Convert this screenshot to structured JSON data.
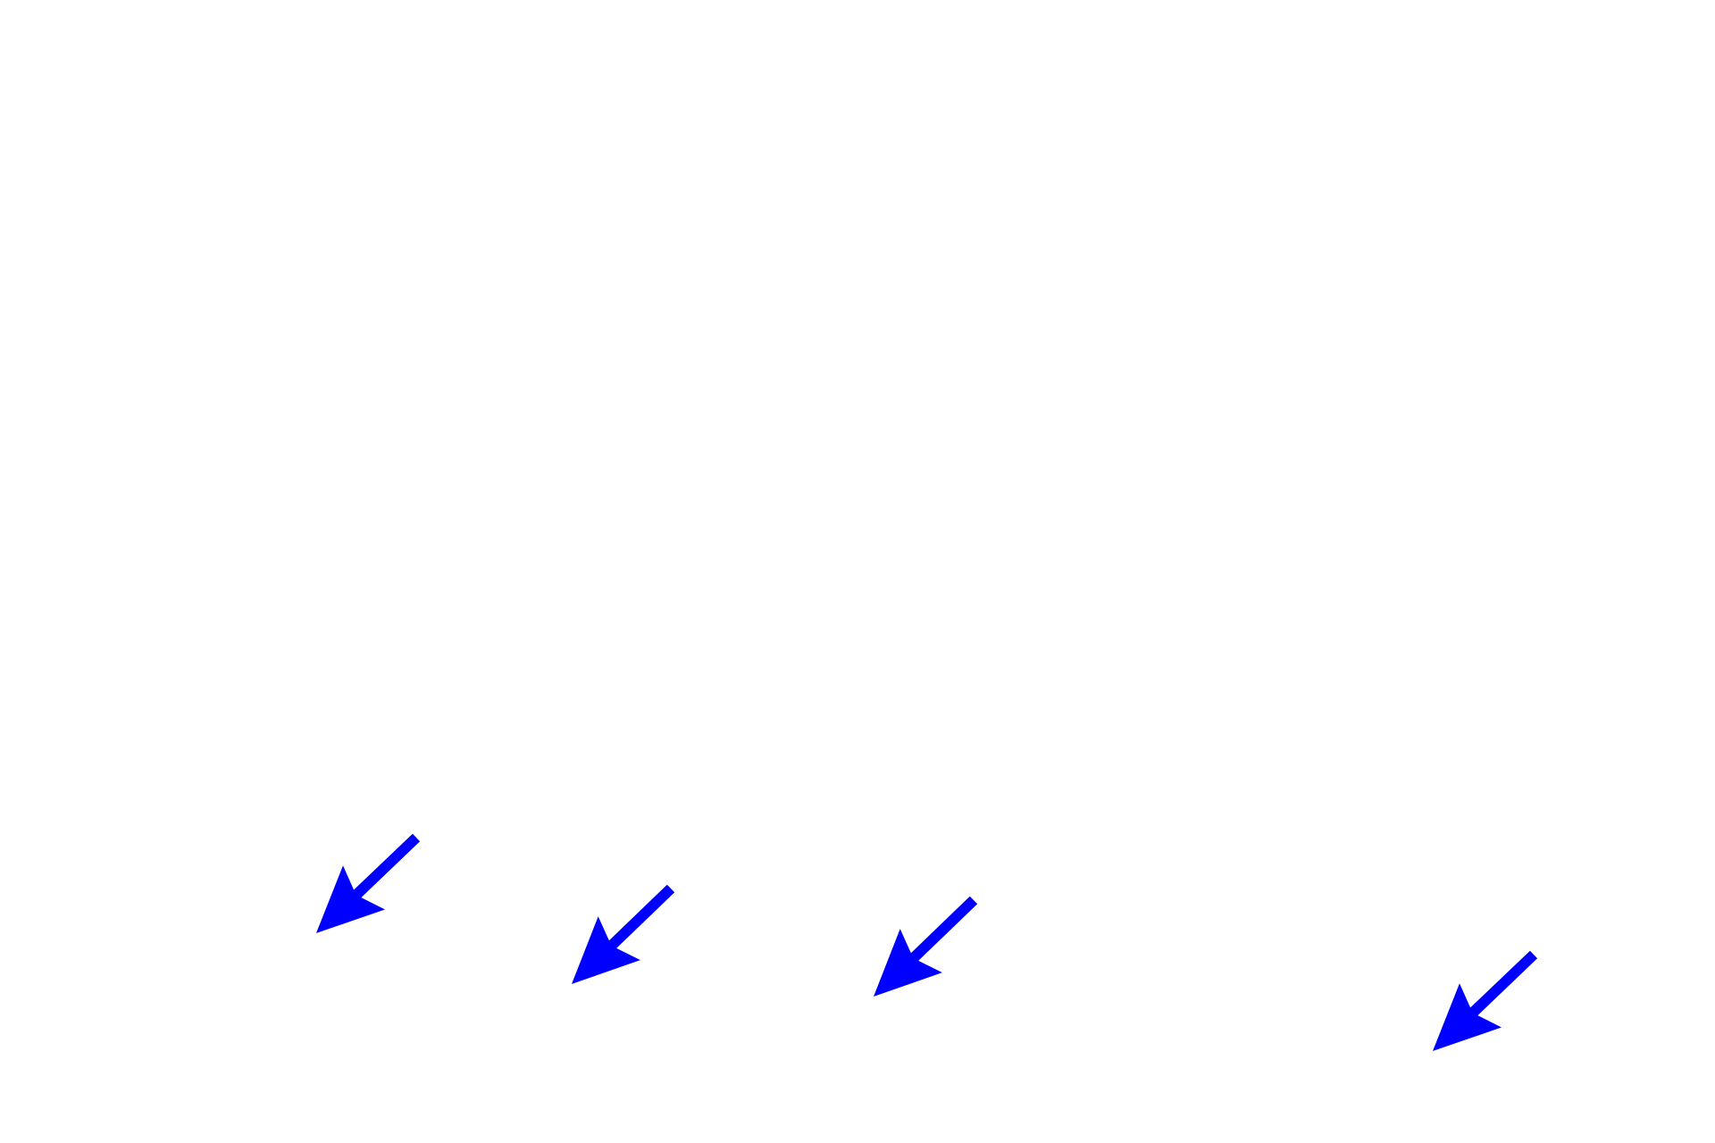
{
  "background_color": "#ffffff",
  "arrow_color": "#0000ff",
  "arrows": [
    {
      "icon": "down-left-arrow-icon"
    },
    {
      "icon": "down-left-arrow-icon"
    },
    {
      "icon": "down-left-arrow-icon"
    },
    {
      "icon": "down-left-arrow-icon"
    }
  ]
}
